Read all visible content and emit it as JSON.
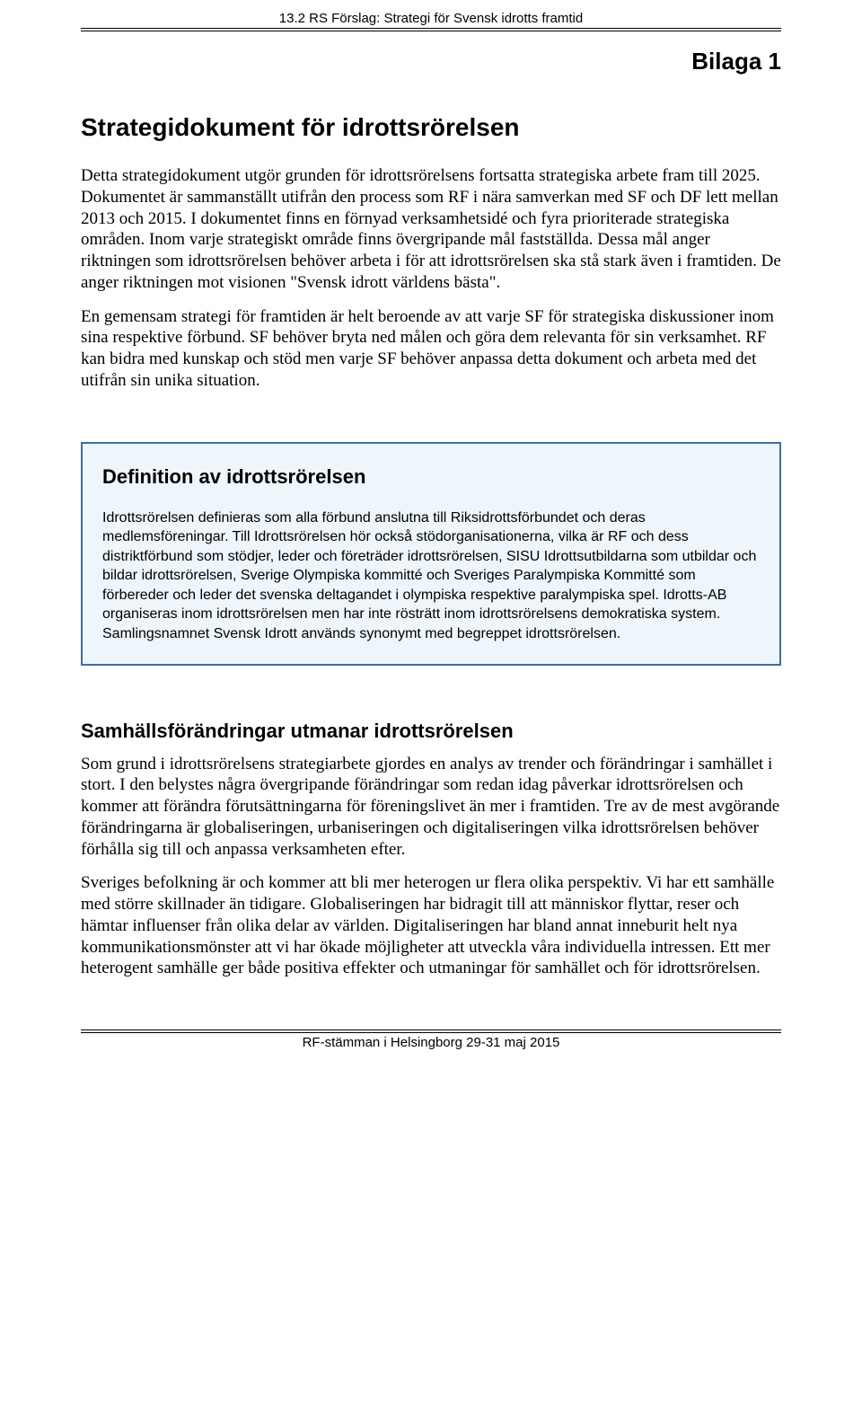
{
  "header": {
    "running_title": "13.2 RS Förslag: Strategi för Svensk idrotts framtid"
  },
  "bilaga_label": "Bilaga 1",
  "main_title": "Strategidokument för idrottsrörelsen",
  "intro_paragraphs": [
    "Detta strategidokument utgör grunden för idrottsrörelsens fortsatta strategiska arbete fram till 2025. Dokumentet är sammanställt utifrån den process som RF i nära samverkan med SF och DF lett mellan 2013 och 2015. I dokumentet finns en förnyad verksamhetsidé och fyra prioriterade strategiska områden. Inom varje strategiskt område finns övergripande mål fastställda. Dessa mål anger riktningen som idrottsrörelsen behöver arbeta i för att idrottsrörelsen ska stå stark även i framtiden. De anger riktningen mot visionen \"Svensk idrott världens bästa\".",
    "En gemensam strategi för framtiden är helt beroende av att varje SF för strategiska diskussioner inom sina respektive förbund. SF behöver bryta ned målen och göra dem relevanta för sin verksamhet. RF kan bidra med kunskap och stöd men varje SF behöver anpassa detta dokument och arbeta med det utifrån sin unika situation."
  ],
  "definition_box": {
    "title": "Definition av idrottsrörelsen",
    "text": "Idrottsrörelsen definieras som alla förbund anslutna till Riksidrottsförbundet och deras medlemsföreningar. Till Idrottsrörelsen hör också stödorganisationerna, vilka är RF och dess distriktförbund som stödjer, leder och företräder idrottsrörelsen, SISU Idrottsutbildarna som utbildar och bildar idrottsrörelsen, Sverige Olympiska kommitté och Sveriges Paralympiska Kommitté som förbereder och leder det svenska deltagandet i olympiska respektive paralympiska spel. Idrotts-AB organiseras inom idrottsrörelsen men har inte rösträtt inom idrottsrörelsens demokratiska system. Samlingsnamnet Svensk Idrott används synonymt med begreppet idrottsrörelsen.",
    "border_color": "#3a6ea8",
    "background_color": "#eef5fb"
  },
  "section2": {
    "title": "Samhällsförändringar utmanar idrottsrörelsen",
    "paragraphs": [
      "Som grund i idrottsrörelsens strategiarbete gjordes en analys av trender och förändringar i samhället i stort. I den belystes några övergripande förändringar som redan idag påverkar idrottsrörelsen och kommer att förändra förutsättningarna för föreningslivet än mer i framtiden. Tre av de mest avgörande förändringarna är globaliseringen, urbaniseringen och digitaliseringen vilka idrottsrörelsen behöver förhålla sig till och anpassa verksamheten efter.",
      "Sveriges befolkning är och kommer att bli mer heterogen ur flera olika perspektiv. Vi har ett samhälle med större skillnader än tidigare. Globaliseringen har bidragit till att människor flyttar, reser och hämtar influenser från olika delar av världen. Digitaliseringen har bland annat inneburit helt nya kommunikationsmönster att vi har ökade möjligheter att utveckla våra individuella intressen. Ett mer heterogent samhälle ger både positiva effekter och utmaningar för samhället och för idrottsrörelsen."
    ]
  },
  "footer": {
    "text": "RF-stämman i Helsingborg 29-31 maj 2015"
  },
  "styles": {
    "page_background": "#ffffff",
    "text_color": "#000000",
    "serif_font": "Times New Roman",
    "sans_font": "Arial",
    "body_fontsize_pt": 14,
    "title_fontsize_pt": 21,
    "section_title_fontsize_pt": 16,
    "definition_fontsize_pt": 12
  }
}
